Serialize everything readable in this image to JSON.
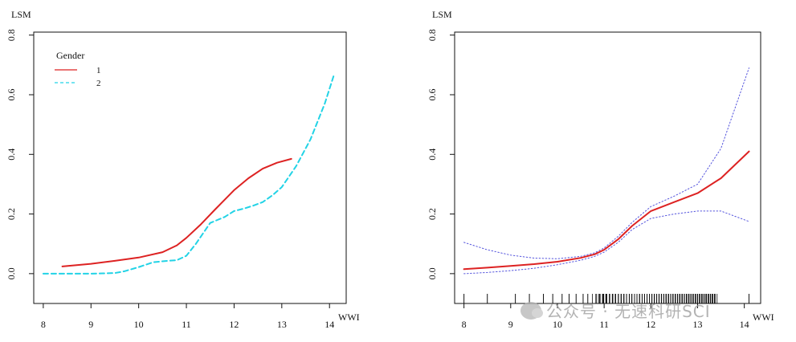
{
  "chart_data": [
    {
      "type": "line",
      "ylabel": "LSM",
      "xlabel": "WWI",
      "xlim": [
        7.8,
        14.35
      ],
      "ylim": [
        -0.1,
        0.81
      ],
      "xticks": [
        8,
        9,
        10,
        11,
        12,
        13,
        14
      ],
      "yticks": [
        0.0,
        0.2,
        0.4,
        0.6,
        0.8
      ],
      "ytick_labels": [
        "0.0",
        "0.2",
        "0.4",
        "0.6",
        "0.8"
      ],
      "legend": {
        "title": "Gender",
        "placement": "top-left"
      },
      "series": [
        {
          "name": "1",
          "color": "#dd2222",
          "style": "solid",
          "x": [
            8.4,
            9.0,
            9.5,
            10.0,
            10.5,
            10.8,
            11.0,
            11.3,
            11.6,
            12.0,
            12.3,
            12.6,
            12.9,
            13.2
          ],
          "y": [
            0.024,
            0.033,
            0.043,
            0.054,
            0.072,
            0.095,
            0.12,
            0.165,
            0.215,
            0.28,
            0.32,
            0.352,
            0.372,
            0.385
          ]
        },
        {
          "name": "2",
          "color": "#22d3e6",
          "style": "dashed",
          "x": [
            8.0,
            8.5,
            9.0,
            9.5,
            9.7,
            10.0,
            10.3,
            10.6,
            10.8,
            11.0,
            11.2,
            11.5,
            11.8,
            12.0,
            12.2,
            12.4,
            12.6,
            12.8,
            13.0,
            13.3,
            13.6,
            13.9,
            14.1
          ],
          "y": [
            0.0,
            0.0,
            0.0,
            0.002,
            0.008,
            0.022,
            0.038,
            0.043,
            0.045,
            0.06,
            0.1,
            0.17,
            0.19,
            0.21,
            0.218,
            0.228,
            0.24,
            0.262,
            0.29,
            0.36,
            0.45,
            0.57,
            0.67
          ]
        }
      ]
    },
    {
      "type": "line",
      "ylabel": "LSM",
      "xlabel": "WWI",
      "xlim": [
        7.8,
        14.35
      ],
      "ylim": [
        -0.1,
        0.81
      ],
      "xticks": [
        8,
        9,
        10,
        11,
        12,
        13,
        14
      ],
      "yticks": [
        0.0,
        0.2,
        0.4,
        0.6,
        0.8
      ],
      "ytick_labels": [
        "0.0",
        "0.2",
        "0.4",
        "0.6",
        "0.8"
      ],
      "rug": true,
      "series": [
        {
          "color": "#dd2222",
          "style": "solid",
          "x": [
            8.0,
            8.5,
            9.0,
            9.5,
            10.0,
            10.5,
            10.8,
            11.0,
            11.3,
            11.6,
            12.0,
            12.5,
            13.0,
            13.5,
            14.1
          ],
          "y": [
            0.015,
            0.02,
            0.026,
            0.032,
            0.04,
            0.053,
            0.065,
            0.08,
            0.115,
            0.16,
            0.21,
            0.24,
            0.27,
            0.32,
            0.41
          ]
        },
        {
          "color": "#5555dd",
          "style": "dotted",
          "x": [
            8.0,
            8.5,
            9.0,
            9.5,
            10.0,
            10.5,
            10.8,
            11.0,
            11.3,
            11.6,
            12.0,
            12.5,
            13.0,
            13.5,
            14.1
          ],
          "y": [
            0.105,
            0.08,
            0.062,
            0.052,
            0.05,
            0.058,
            0.07,
            0.086,
            0.125,
            0.172,
            0.225,
            0.26,
            0.3,
            0.42,
            0.69
          ]
        },
        {
          "color": "#5555dd",
          "style": "dotted",
          "x": [
            8.0,
            8.5,
            9.0,
            9.5,
            10.0,
            10.5,
            10.8,
            11.0,
            11.3,
            11.6,
            12.0,
            12.5,
            13.0,
            13.5,
            14.1
          ],
          "y": [
            0.0,
            0.004,
            0.01,
            0.018,
            0.03,
            0.045,
            0.058,
            0.072,
            0.105,
            0.148,
            0.185,
            0.2,
            0.21,
            0.21,
            0.175
          ]
        }
      ]
    }
  ],
  "watermark": {
    "text": "公众号 · 无速科研SCI"
  }
}
